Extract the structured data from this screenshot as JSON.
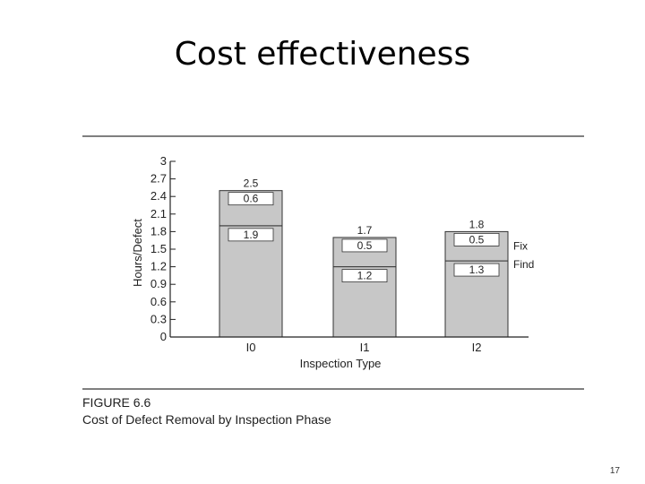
{
  "slide": {
    "title": "Cost effectiveness",
    "page_number": "17"
  },
  "figure": {
    "label": "FIGURE 6.6",
    "caption": "Cost of Defect Removal by Inspection Phase"
  },
  "colors": {
    "bar_fill": "#c7c7c7",
    "label_box": "#ffffff",
    "rule": "#555555"
  },
  "chart_data": {
    "type": "bar",
    "stacked": true,
    "title": "",
    "xlabel": "Inspection Type",
    "ylabel": "Hours/Defect",
    "categories": [
      "I0",
      "I1",
      "I2"
    ],
    "series": [
      {
        "name": "Find",
        "values": [
          1.9,
          1.2,
          1.3
        ]
      },
      {
        "name": "Fix",
        "values": [
          0.6,
          0.5,
          0.5
        ]
      }
    ],
    "totals": [
      2.5,
      1.7,
      1.8
    ],
    "ylim": [
      0,
      3
    ],
    "yticks": [
      "0",
      "0.3",
      "0.6",
      "0.9",
      "1.2",
      "1.5",
      "1.8",
      "2.1",
      "2.4",
      "2.7",
      "3"
    ],
    "grid": false,
    "legend": "right of last bar"
  }
}
